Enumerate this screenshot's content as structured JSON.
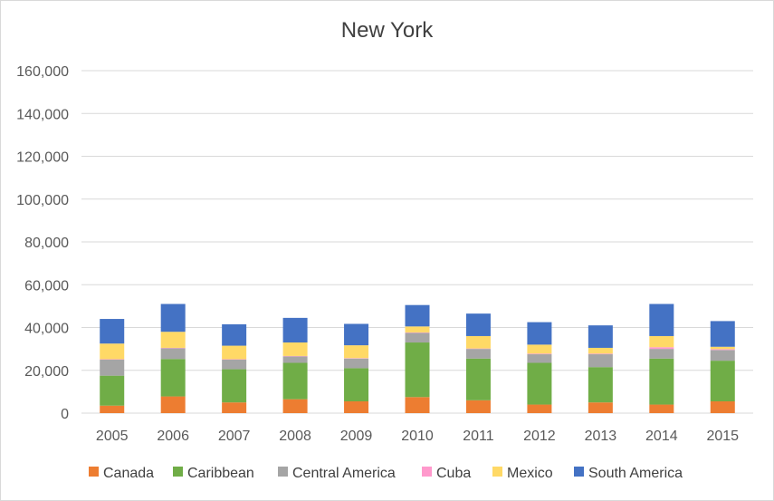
{
  "chart_data": {
    "type": "bar",
    "stacked": true,
    "title": "New York",
    "categories": [
      "2005",
      "2006",
      "2007",
      "2008",
      "2009",
      "2010",
      "2011",
      "2012",
      "2013",
      "2014",
      "2015"
    ],
    "series": [
      {
        "name": "Canada",
        "color": "#ed7d31",
        "values": [
          3500,
          7800,
          5000,
          6500,
          5500,
          7500,
          6000,
          4000,
          5000,
          4000,
          5500
        ]
      },
      {
        "name": "Caribbean",
        "color": "#70ad47",
        "values": [
          14000,
          17500,
          15500,
          17000,
          15500,
          25500,
          19500,
          19500,
          16500,
          21500,
          19000
        ]
      },
      {
        "name": "Central America",
        "color": "#a5a5a5",
        "values": [
          7500,
          5000,
          4500,
          3000,
          4500,
          4500,
          4500,
          4000,
          6000,
          4500,
          5000
        ]
      },
      {
        "name": "Cuba",
        "color": "#ff99cc",
        "values": [
          200,
          200,
          200,
          200,
          200,
          200,
          200,
          300,
          300,
          800,
          400
        ]
      },
      {
        "name": "Mexico",
        "color": "#ffd966",
        "values": [
          7300,
          7500,
          6300,
          6300,
          6000,
          2800,
          5800,
          4200,
          2700,
          5200,
          1100
        ]
      },
      {
        "name": "South America",
        "color": "#4472c4",
        "values": [
          11500,
          13000,
          10000,
          11500,
          10000,
          10000,
          10500,
          10500,
          10500,
          15000,
          12000
        ]
      }
    ],
    "ylim": [
      0,
      160000
    ],
    "yticks": [
      "0",
      "20,000",
      "40,000",
      "60,000",
      "80,000",
      "100,000",
      "120,000",
      "140,000",
      "160,000"
    ],
    "ytick_values": [
      0,
      20000,
      40000,
      60000,
      80000,
      100000,
      120000,
      140000,
      160000
    ],
    "grid": true,
    "legend_position": "bottom",
    "xlabel": "",
    "ylabel": ""
  }
}
